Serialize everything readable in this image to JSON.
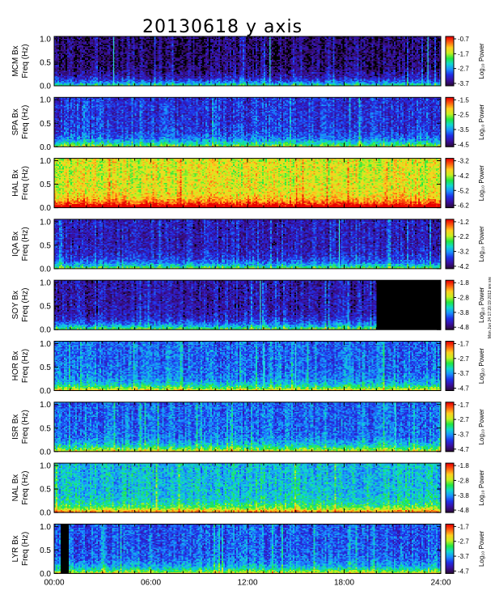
{
  "chart_data": {
    "type": "heatmap",
    "title": "20130618 y axis",
    "x_tick_labels": [
      "00:00",
      "06:00",
      "12:00",
      "18:00",
      "24:00"
    ],
    "x_ticks_hours": [
      0,
      6,
      12,
      18,
      24
    ],
    "x_range_hours": [
      0,
      24
    ],
    "y_range_hz": [
      0,
      1.05
    ],
    "y_tick_labels": [
      "0.0",
      "0.5",
      "1.0"
    ],
    "y_ticks": [
      0.0,
      0.5,
      1.0
    ],
    "colorbar_label": "Log₁₀ Power",
    "side_note": "Mon Jun 24 17:20:19 2013 sre sre",
    "colormap": [
      "#2a0a3a",
      "#3a10a0",
      "#2030e8",
      "#1a90ff",
      "#10d8d0",
      "#20e840",
      "#c8f020",
      "#ffd020",
      "#ff6010",
      "#e80000"
    ],
    "panels": [
      {
        "station_label": "MCM Bx",
        "freq_label": "Freq (Hz)",
        "cbar_ticks": [
          "-0.7",
          "-1.7",
          "-2.7",
          "-3.7"
        ],
        "base_level": 0.05,
        "lines_hours": [
          3.7,
          13.4,
          23.2
        ],
        "black_hours": []
      },
      {
        "station_label": "SPA Bx",
        "freq_label": "Freq (Hz)",
        "cbar_ticks": [
          "-1.5",
          "-2.5",
          "-3.5",
          "-4.5"
        ],
        "base_level": 0.2,
        "lines_hours": [],
        "black_hours": []
      },
      {
        "station_label": "HAL Bx",
        "freq_label": "Freq (Hz)",
        "cbar_ticks": [
          "-3.2",
          "-4.2",
          "-5.2",
          "-6.2"
        ],
        "base_level": 0.7,
        "lines_hours": [],
        "black_hours": []
      },
      {
        "station_label": "IQA Bx",
        "freq_label": "Freq (Hz)",
        "cbar_ticks": [
          "-1.2",
          "-2.2",
          "-3.2",
          "-4.2"
        ],
        "base_level": 0.15,
        "lines_hours": [
          17.7
        ],
        "black_hours": []
      },
      {
        "station_label": "SOY Bx",
        "freq_label": "Freq (Hz)",
        "cbar_ticks": [
          "-1.8",
          "-2.8",
          "-3.8",
          "-4.8"
        ],
        "base_level": 0.12,
        "lines_hours": [
          12.8
        ],
        "black_hours": [
          [
            20.0,
            24.0
          ]
        ]
      },
      {
        "station_label": "HOR Bx",
        "freq_label": "Freq (Hz)",
        "cbar_ticks": [
          "-1.7",
          "-2.7",
          "-3.7",
          "-4.7"
        ],
        "base_level": 0.28,
        "lines_hours": [
          13.0,
          15.0
        ],
        "black_hours": []
      },
      {
        "station_label": "ISR Bx",
        "freq_label": "Freq (Hz)",
        "cbar_ticks": [
          "-1.7",
          "-2.7",
          "-3.7",
          "-4.7"
        ],
        "base_level": 0.28,
        "lines_hours": [
          21.2
        ],
        "black_hours": []
      },
      {
        "station_label": "NAL Bx",
        "freq_label": "Freq (Hz)",
        "cbar_ticks": [
          "-1.8",
          "-2.8",
          "-3.8",
          "-4.8"
        ],
        "base_level": 0.4,
        "lines_hours": [],
        "black_hours": []
      },
      {
        "station_label": "LYR Bx",
        "freq_label": "Freq (Hz)",
        "cbar_ticks": [
          "-1.7",
          "-2.7",
          "-3.7",
          "-4.7"
        ],
        "base_level": 0.26,
        "lines_hours": [],
        "black_hours": [
          [
            0.35,
            0.85
          ]
        ]
      }
    ]
  }
}
